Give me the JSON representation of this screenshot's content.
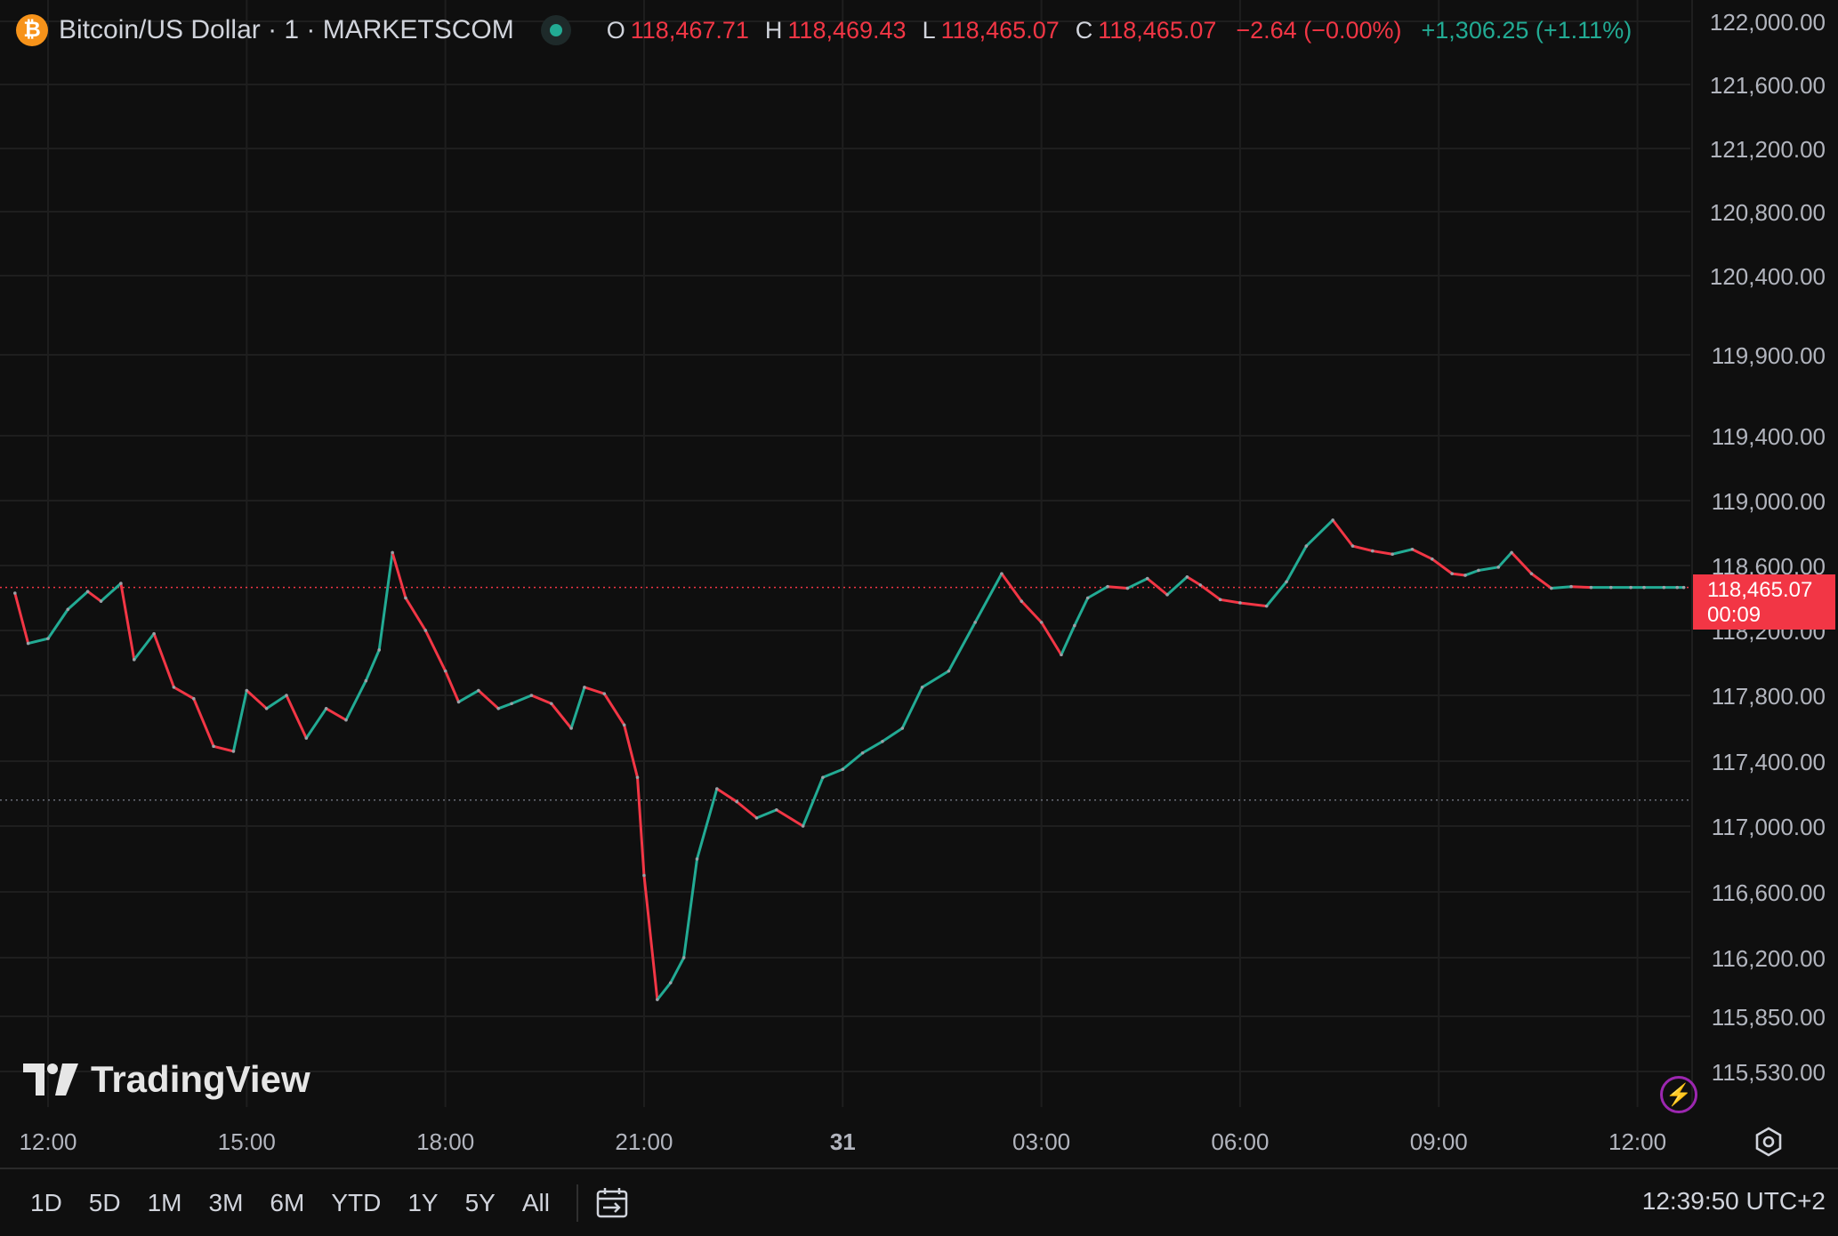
{
  "legend": {
    "symbol_icon": "bitcoin-icon",
    "symbol_glyph": "₿",
    "symbol": "Bitcoin/US Dollar · 1 · MARKETSCOM",
    "ohlc": [
      {
        "key": "O",
        "value": "118,467.71"
      },
      {
        "key": "H",
        "value": "118,469.43"
      },
      {
        "key": "L",
        "value": "118,465.07"
      },
      {
        "key": "C",
        "value": "118,465.07"
      }
    ],
    "change": "−2.64 (−0.00%)",
    "extended_change": "+1,306.25 (+1.11%)"
  },
  "price_tag": {
    "price": "118,465.07",
    "countdown": "00:09"
  },
  "brand": {
    "name": "TradingView"
  },
  "ranges": [
    "1D",
    "5D",
    "1M",
    "3M",
    "6M",
    "YTD",
    "1Y",
    "5Y",
    "All"
  ],
  "clock": "12:39:50 UTC+2",
  "colors": {
    "up": "#22ab94",
    "down": "#f23645",
    "background": "#0f0f0f",
    "grid": "#1e1e1e",
    "accent": "#f7931a"
  },
  "chart_data": {
    "type": "line",
    "title": "Bitcoin/US Dollar · 1 · MARKETSCOM",
    "interval": "1 minute candlesticks",
    "xlabel": "",
    "ylabel": "",
    "x_tick_labels": [
      "12:00",
      "15:00",
      "18:00",
      "21:00",
      "31",
      "03:00",
      "06:00",
      "09:00",
      "12:00"
    ],
    "y_tick_labels": [
      "122,000.00",
      "121,600.00",
      "121,200.00",
      "120,800.00",
      "120,400.00",
      "119,900.00",
      "119,400.00",
      "119,000.00",
      "118,600.00",
      "118,200.00",
      "117,800.00",
      "117,400.00",
      "117,000.00",
      "116,600.00",
      "116,200.00",
      "115,850.00",
      "115,530.00"
    ],
    "hours_from_first_tick": [
      -0.5,
      -0.3,
      0.0,
      0.3,
      0.6,
      0.8,
      1.1,
      1.3,
      1.6,
      1.9,
      2.2,
      2.5,
      2.8,
      3.0,
      3.3,
      3.6,
      3.9,
      4.2,
      4.5,
      4.8,
      5.0,
      5.2,
      5.4,
      5.7,
      6.0,
      6.2,
      6.5,
      6.8,
      7.0,
      7.3,
      7.6,
      7.9,
      8.1,
      8.4,
      8.7,
      8.9,
      9.0,
      9.2,
      9.4,
      9.6,
      9.8,
      10.1,
      10.4,
      10.7,
      11.0,
      11.4,
      11.7,
      12.0,
      12.3,
      12.6,
      12.9,
      13.2,
      13.6,
      14.0,
      14.4,
      14.7,
      15.0,
      15.3,
      15.5,
      15.7,
      16.0,
      16.3,
      16.6,
      16.9,
      17.2,
      17.4,
      17.7,
      18.0,
      18.4,
      18.7,
      19.0,
      19.4,
      19.7,
      20.0,
      20.3,
      20.6,
      20.9,
      21.2,
      21.4,
      21.6,
      21.9,
      22.1,
      22.4,
      22.7,
      23.0,
      23.3,
      23.6,
      23.9,
      24.1,
      24.4,
      24.6,
      24.7
    ],
    "values": [
      118430,
      118120,
      118150,
      118330,
      118440,
      118380,
      118490,
      118020,
      118180,
      117850,
      117780,
      117490,
      117460,
      117830,
      117720,
      117800,
      117540,
      117720,
      117650,
      117890,
      118080,
      118680,
      118400,
      118200,
      117950,
      117760,
      117830,
      117720,
      117750,
      117800,
      117750,
      117600,
      117850,
      117810,
      117620,
      117300,
      116700,
      115950,
      116050,
      116200,
      116800,
      117230,
      117150,
      117050,
      117100,
      117000,
      117300,
      117350,
      117450,
      117520,
      117600,
      117850,
      117950,
      118250,
      118550,
      118380,
      118250,
      118050,
      118230,
      118400,
      118470,
      118460,
      118520,
      118420,
      118530,
      118480,
      118390,
      118370,
      118350,
      118500,
      118720,
      118880,
      118720,
      118690,
      118670,
      118700,
      118640,
      118550,
      118540,
      118570,
      118590,
      118680,
      118550,
      118460,
      118470,
      118465,
      118465,
      118465,
      118465,
      118465,
      118465,
      118465
    ],
    "ylim": [
      115500,
      122050
    ],
    "last_price": 118465.07,
    "reference_price": 117160,
    "grid": true,
    "legend": "top-left"
  }
}
